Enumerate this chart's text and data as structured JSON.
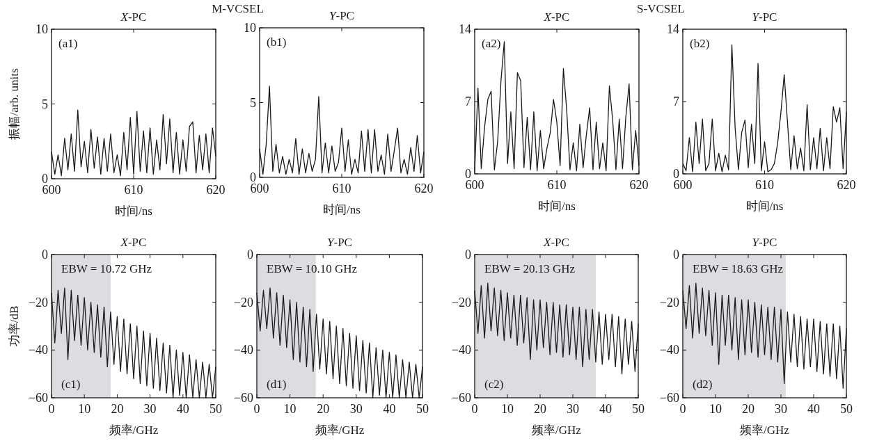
{
  "chart_data": [
    {
      "type": "line",
      "title": "*X*-PC",
      "ylabel": "振幅/arb. units",
      "xlabel": "时间/ns",
      "annotations": [
        "(a1)",
        "M-VCSEL"
      ],
      "xlim": [
        600,
        620
      ],
      "ylim": [
        0,
        10
      ],
      "xticks": [
        600,
        610,
        620
      ],
      "yticks": [
        0,
        5,
        10
      ],
      "x": [
        600,
        600.4,
        600.8,
        601.2,
        601.6,
        602,
        602.4,
        602.8,
        603.2,
        603.6,
        604,
        604.4,
        604.8,
        605.2,
        605.6,
        606,
        606.4,
        606.8,
        607.2,
        607.6,
        608,
        608.4,
        608.8,
        609.2,
        609.6,
        610,
        610.4,
        610.8,
        611.2,
        611.6,
        612,
        612.4,
        612.8,
        613.2,
        613.6,
        614,
        614.4,
        614.8,
        615.2,
        615.6,
        616,
        616.4,
        616.8,
        617.2,
        617.6,
        618,
        618.4,
        618.8,
        619.2,
        619.6,
        620
      ],
      "series": [
        {
          "color": "#1a1a1a",
          "values": [
            1.8,
            0.3,
            1.6,
            0.2,
            2.7,
            0.6,
            3.0,
            0.5,
            4.6,
            0.8,
            2.5,
            0.4,
            3.3,
            0.7,
            2.8,
            0.3,
            2.7,
            0.5,
            3.0,
            0.4,
            1.6,
            0.2,
            3.1,
            0.6,
            4.1,
            0.3,
            4.5,
            0.5,
            3.2,
            0.4,
            3.4,
            0.3,
            2.6,
            0.6,
            4.3,
            1.0,
            4.0,
            0.4,
            3.1,
            0.3,
            2.6,
            0.5,
            3.5,
            3.8,
            0.4,
            2.9,
            0.6,
            3.0,
            0.4,
            3.4,
            1.5
          ]
        }
      ]
    },
    {
      "type": "line",
      "title": "*Y*-PC",
      "xlabel": "时间/ns",
      "annotations": [
        "(b1)"
      ],
      "xlim": [
        600,
        620
      ],
      "ylim": [
        0,
        10
      ],
      "xticks": [
        600,
        610,
        620
      ],
      "yticks": [
        0,
        5,
        10
      ],
      "x": [
        600,
        600.4,
        600.8,
        601.2,
        601.6,
        602,
        602.4,
        602.8,
        603.2,
        603.6,
        604,
        604.4,
        604.8,
        605.2,
        605.6,
        606,
        606.4,
        606.8,
        607.2,
        607.6,
        608,
        608.4,
        608.8,
        609.2,
        609.6,
        610,
        610.4,
        610.8,
        611.2,
        611.6,
        612,
        612.4,
        612.8,
        613.2,
        613.6,
        614,
        614.4,
        614.8,
        615.2,
        615.6,
        616,
        616.4,
        616.8,
        617.2,
        617.6,
        618,
        618.4,
        618.8,
        619.2,
        619.6,
        620
      ],
      "series": [
        {
          "color": "#1a1a1a",
          "values": [
            1.9,
            0.2,
            2.2,
            6.1,
            0.4,
            2.2,
            0.3,
            1.4,
            0.2,
            1.2,
            0.3,
            2.6,
            0.2,
            1.9,
            0.3,
            1.6,
            0.4,
            1.2,
            5.4,
            0.3,
            2.3,
            0.3,
            2.1,
            0.4,
            1.0,
            3.3,
            0.4,
            2.5,
            0.2,
            1.2,
            0.3,
            3.1,
            0.4,
            3.2,
            0.3,
            3.2,
            0.4,
            1.5,
            0.2,
            2.9,
            0.4,
            1.8,
            3.3,
            0.3,
            1.2,
            0.2,
            2.0,
            0.4,
            2.8,
            0.3,
            1.7
          ]
        }
      ]
    },
    {
      "type": "line",
      "title": "*X*-PC",
      "xlabel": "时间/ns",
      "annotations": [
        "(a2)",
        "S-VCSEL"
      ],
      "xlim": [
        600,
        620
      ],
      "ylim": [
        0,
        14
      ],
      "xticks": [
        600,
        610,
        620
      ],
      "yticks": [
        0,
        7,
        14
      ],
      "x": [
        600,
        600.4,
        600.8,
        601.2,
        601.6,
        602,
        602.4,
        602.8,
        603.2,
        603.6,
        604,
        604.4,
        604.8,
        605.2,
        605.6,
        606,
        606.4,
        606.8,
        607.2,
        607.6,
        608,
        608.4,
        608.8,
        609.2,
        609.6,
        610,
        610.4,
        610.8,
        611.2,
        611.6,
        612,
        612.4,
        612.8,
        613.2,
        613.6,
        614,
        614.4,
        614.8,
        615.2,
        615.6,
        616,
        616.4,
        616.8,
        617.2,
        617.6,
        618,
        618.4,
        618.8,
        619.2,
        619.6,
        620
      ],
      "series": [
        {
          "color": "#1a1a1a",
          "values": [
            0.3,
            8.3,
            0.5,
            4.5,
            7.2,
            8.0,
            0.4,
            3.2,
            9.0,
            12.8,
            1.0,
            6.0,
            0.5,
            9.8,
            9.0,
            0.6,
            5.5,
            0.4,
            6.0,
            0.3,
            4.2,
            0.5,
            2.5,
            4.0,
            7.2,
            5.0,
            0.8,
            10.2,
            6.2,
            0.4,
            3.0,
            0.3,
            4.8,
            0.6,
            3.8,
            6.4,
            0.4,
            5.0,
            0.5,
            3.0,
            0.3,
            8.5,
            5.2,
            0.4,
            5.3,
            0.5,
            5.5,
            8.7,
            0.4,
            4.2,
            0.8
          ]
        }
      ]
    },
    {
      "type": "line",
      "title": "*Y*-PC",
      "xlabel": "时间/ns",
      "annotations": [
        "(b2)"
      ],
      "xlim": [
        600,
        620
      ],
      "ylim": [
        0,
        14
      ],
      "xticks": [
        600,
        610,
        620
      ],
      "yticks": [
        0,
        7,
        14
      ],
      "x": [
        600,
        600.4,
        600.8,
        601.2,
        601.6,
        602,
        602.4,
        602.8,
        603.2,
        603.6,
        604,
        604.4,
        604.8,
        605.2,
        605.6,
        606,
        606.4,
        606.8,
        607.2,
        607.6,
        608,
        608.4,
        608.8,
        609.2,
        609.6,
        610,
        610.4,
        610.8,
        611.2,
        611.6,
        612,
        612.4,
        612.8,
        613.2,
        613.6,
        614,
        614.4,
        614.8,
        615.2,
        615.6,
        616,
        616.4,
        616.8,
        617.2,
        617.6,
        618,
        618.4,
        618.8,
        619.2,
        619.6,
        620
      ],
      "series": [
        {
          "color": "#1a1a1a",
          "values": [
            1.0,
            0.3,
            3.5,
            0.2,
            5.0,
            1.0,
            5.3,
            0.3,
            1.0,
            5.3,
            0.3,
            2.0,
            0.2,
            1.8,
            0.4,
            12.5,
            4.4,
            0.4,
            4.0,
            5.2,
            0.6,
            4.8,
            1.0,
            10.7,
            0.3,
            3.1,
            0.2,
            0.4,
            1.0,
            3.0,
            6.0,
            9.6,
            5.0,
            0.4,
            3.7,
            0.5,
            2.5,
            0.3,
            6.7,
            0.4,
            3.5,
            0.5,
            4.4,
            0.3,
            3.5,
            0.5,
            6.5,
            5.0,
            6.4,
            0.5,
            6.0
          ]
        }
      ]
    },
    {
      "type": "line",
      "title": "*X*-PC",
      "ylabel": "功率/dB",
      "xlabel": "频率/GHz",
      "annotations": [
        "(c1)",
        "EBW = 10.72 GHz"
      ],
      "xlim": [
        0,
        50
      ],
      "ylim": [
        -60,
        0
      ],
      "xticks": [
        0,
        10,
        20,
        30,
        40,
        50
      ],
      "yticks": [
        {
          "value": -60,
          "label": "−60"
        },
        {
          "value": -40,
          "label": "−40"
        },
        {
          "value": -20,
          "label": "−20"
        },
        0
      ],
      "bands": [
        {
          "axis": "x",
          "from": 0,
          "to": 18,
          "color": "#dcdde1"
        }
      ],
      "x": [
        0,
        1,
        2,
        3,
        4,
        5,
        6,
        7,
        8,
        9,
        10,
        11,
        12,
        13,
        14,
        15,
        16,
        17,
        18,
        19,
        20,
        21,
        22,
        23,
        24,
        25,
        26,
        27,
        28,
        29,
        30,
        31,
        32,
        33,
        34,
        35,
        36,
        37,
        38,
        39,
        40,
        41,
        42,
        43,
        44,
        45,
        46,
        47,
        48,
        49,
        50
      ],
      "series": [
        {
          "color": "#1a1a1a",
          "values": [
            -16,
            -37,
            -15,
            -33,
            -14,
            -44,
            -15,
            -36,
            -17,
            -38,
            -18,
            -40,
            -20,
            -41,
            -21,
            -43,
            -22,
            -47,
            -24,
            -46,
            -26,
            -49,
            -27,
            -50,
            -29,
            -52,
            -30,
            -54,
            -32,
            -55,
            -33,
            -56,
            -35,
            -57,
            -37,
            -58,
            -38,
            -60,
            -40,
            -59,
            -41,
            -60,
            -42,
            -60,
            -44,
            -60,
            -45,
            -60,
            -46,
            -60,
            -47
          ]
        }
      ]
    },
    {
      "type": "line",
      "title": "*Y*-PC",
      "xlabel": "频率/GHz",
      "annotations": [
        "(d1)",
        "EBW = 10.10 GHz"
      ],
      "xlim": [
        0,
        50
      ],
      "ylim": [
        -60,
        0
      ],
      "xticks": [
        0,
        10,
        20,
        30,
        40,
        50
      ],
      "yticks": [
        {
          "value": -60,
          "label": "−60"
        },
        {
          "value": -40,
          "label": "−40"
        },
        {
          "value": -20,
          "label": "−20"
        },
        0
      ],
      "bands": [
        {
          "axis": "x",
          "from": 0,
          "to": 17.8,
          "color": "#dcdde1"
        }
      ],
      "x": [
        0,
        1,
        2,
        3,
        4,
        5,
        6,
        7,
        8,
        9,
        10,
        11,
        12,
        13,
        14,
        15,
        16,
        17,
        18,
        19,
        20,
        21,
        22,
        23,
        24,
        25,
        26,
        27,
        28,
        29,
        30,
        31,
        32,
        33,
        34,
        35,
        36,
        37,
        38,
        39,
        40,
        41,
        42,
        43,
        44,
        45,
        46,
        47,
        48,
        49,
        50
      ],
      "series": [
        {
          "color": "#1a1a1a",
          "values": [
            -16,
            -32,
            -15,
            -31,
            -14,
            -35,
            -16,
            -38,
            -17,
            -39,
            -19,
            -44,
            -20,
            -45,
            -22,
            -47,
            -23,
            -49,
            -25,
            -48,
            -27,
            -50,
            -28,
            -52,
            -30,
            -54,
            -31,
            -55,
            -33,
            -56,
            -34,
            -57,
            -36,
            -58,
            -37,
            -60,
            -39,
            -59,
            -40,
            -60,
            -41,
            -60,
            -42,
            -60,
            -44,
            -60,
            -45,
            -60,
            -46,
            -60,
            -47
          ]
        }
      ]
    },
    {
      "type": "line",
      "title": "*X*-PC",
      "xlabel": "频率/GHz",
      "annotations": [
        "(c2)",
        "EBW = 20.13 GHz"
      ],
      "xlim": [
        0,
        50
      ],
      "ylim": [
        -60,
        0
      ],
      "xticks": [
        0,
        10,
        20,
        30,
        40,
        50
      ],
      "yticks": [
        {
          "value": -60,
          "label": "−60"
        },
        {
          "value": -40,
          "label": "−40"
        },
        {
          "value": -20,
          "label": "−20"
        },
        0
      ],
      "bands": [
        {
          "axis": "x",
          "from": 0,
          "to": 37,
          "color": "#dcdde1"
        }
      ],
      "x": [
        0,
        1,
        2,
        3,
        4,
        5,
        6,
        7,
        8,
        9,
        10,
        11,
        12,
        13,
        14,
        15,
        16,
        17,
        18,
        19,
        20,
        21,
        22,
        23,
        24,
        25,
        26,
        27,
        28,
        29,
        30,
        31,
        32,
        33,
        34,
        35,
        36,
        37,
        38,
        39,
        40,
        41,
        42,
        43,
        44,
        45,
        46,
        47,
        48,
        49,
        50
      ],
      "series": [
        {
          "color": "#1a1a1a",
          "values": [
            -15,
            -33,
            -13,
            -35,
            -12,
            -32,
            -14,
            -34,
            -15,
            -36,
            -16,
            -35,
            -17,
            -38,
            -17,
            -37,
            -18,
            -44,
            -19,
            -40,
            -19,
            -39,
            -20,
            -42,
            -20,
            -41,
            -21,
            -43,
            -21,
            -42,
            -22,
            -44,
            -22,
            -47,
            -23,
            -44,
            -23,
            -45,
            -24,
            -46,
            -25,
            -44,
            -25,
            -47,
            -26,
            -50,
            -27,
            -46,
            -28,
            -49,
            -29
          ]
        }
      ]
    },
    {
      "type": "line",
      "title": "*Y*-PC",
      "xlabel": "频率/GHz",
      "annotations": [
        "(d2)",
        "EBW = 18.63 GHz"
      ],
      "xlim": [
        0,
        50
      ],
      "ylim": [
        -60,
        0
      ],
      "xticks": [
        0,
        10,
        20,
        30,
        40,
        50
      ],
      "yticks": [
        {
          "value": -60,
          "label": "−60"
        },
        {
          "value": -40,
          "label": "−40"
        },
        {
          "value": -20,
          "label": "−20"
        },
        0
      ],
      "bands": [
        {
          "axis": "x",
          "from": 0,
          "to": 31.5,
          "color": "#dcdde1"
        }
      ],
      "x": [
        0,
        1,
        2,
        3,
        4,
        5,
        6,
        7,
        8,
        9,
        10,
        11,
        12,
        13,
        14,
        15,
        16,
        17,
        18,
        19,
        20,
        21,
        22,
        23,
        24,
        25,
        26,
        27,
        28,
        29,
        30,
        31,
        32,
        33,
        34,
        35,
        36,
        37,
        38,
        39,
        40,
        41,
        42,
        43,
        44,
        45,
        46,
        47,
        48,
        49,
        50
      ],
      "series": [
        {
          "color": "#1a1a1a",
          "values": [
            -15,
            -31,
            -13,
            -35,
            -12,
            -33,
            -14,
            -34,
            -15,
            -38,
            -16,
            -46,
            -17,
            -38,
            -17,
            -40,
            -18,
            -44,
            -19,
            -42,
            -19,
            -41,
            -20,
            -43,
            -21,
            -42,
            -22,
            -44,
            -22,
            -45,
            -23,
            -54,
            -24,
            -45,
            -25,
            -47,
            -26,
            -48,
            -27,
            -47,
            -27,
            -49,
            -28,
            -50,
            -29,
            -51,
            -29,
            -52,
            -30,
            -56,
            -31
          ]
        }
      ]
    }
  ]
}
